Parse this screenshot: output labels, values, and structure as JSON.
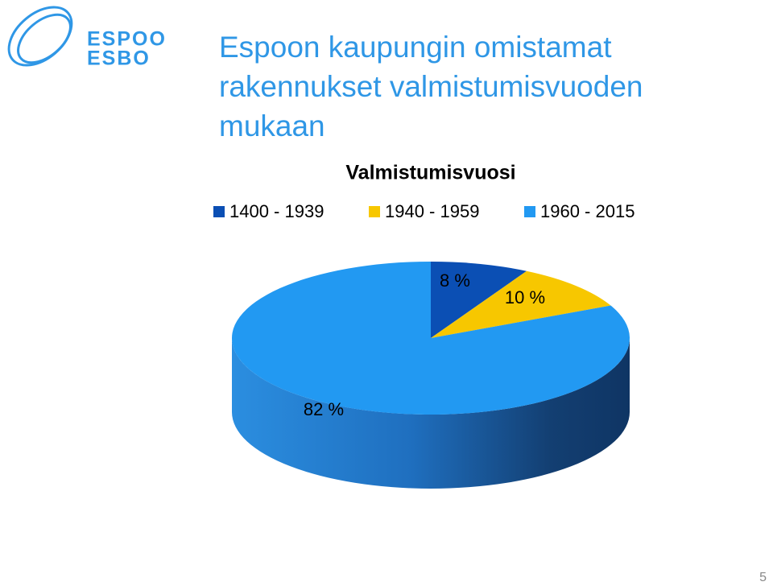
{
  "slide": {
    "title": "Espoon kaupungin omistamat rakennukset valmistumisvuoden mukaan",
    "logo": [
      "ESPOO",
      "ESBO"
    ],
    "page_number": "5"
  },
  "chart_data": {
    "type": "pie",
    "title": "Valmistumisvuosi",
    "categories": [
      "1400 - 1939",
      "1940 - 1959",
      "1960 - 2015"
    ],
    "values": [
      8,
      10,
      82
    ],
    "value_labels": [
      "8 %",
      "10 %",
      "82 %"
    ],
    "colors": [
      "#0b4fb4",
      "#f7c700",
      "#2299f2"
    ],
    "legend": "top"
  }
}
